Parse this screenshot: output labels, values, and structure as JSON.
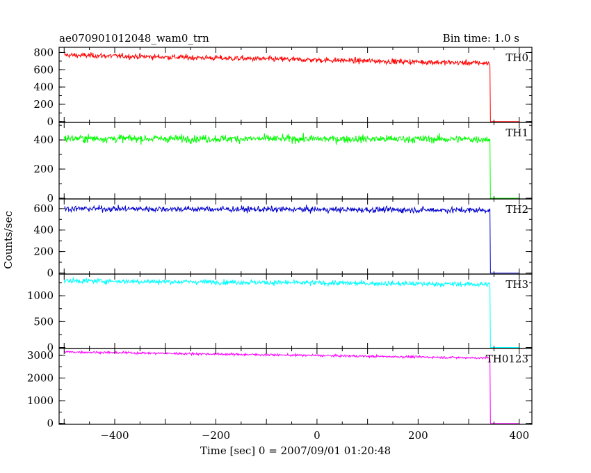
{
  "chart_data": {
    "type": "line",
    "title": "ae070901012048_wam0_trn",
    "bin_time_label": "Bin time: 1.0 s",
    "xlabel": "Time [sec] 0 = 2007/09/01 01:20:48",
    "ylabel": "Counts/sec",
    "xlim": [
      -510,
      425
    ],
    "x_ticks": [
      -400,
      -200,
      0,
      200,
      400
    ],
    "x_tick_labels": [
      "−400",
      "−200",
      "0",
      "200",
      "400"
    ],
    "x_start": -500,
    "x_end": 400,
    "drop_time": 342,
    "panels": [
      {
        "name": "TH0",
        "color": "#ff0000",
        "ylim": [
          -10,
          860
        ],
        "y_ticks": [
          0,
          200,
          400,
          600,
          800
        ],
        "level_start": 770,
        "level_end": 675,
        "noise": 28,
        "after_drop": 0
      },
      {
        "name": "TH1",
        "color": "#00ff00",
        "ylim": [
          -5,
          520
        ],
        "y_ticks": [
          0,
          200,
          400
        ],
        "level_start": 410,
        "level_end": 405,
        "noise": 24,
        "after_drop": 0
      },
      {
        "name": "TH2",
        "color": "#0000cc",
        "ylim": [
          -10,
          690
        ],
        "y_ticks": [
          0,
          200,
          400,
          600
        ],
        "level_start": 600,
        "level_end": 585,
        "noise": 25,
        "after_drop": 0
      },
      {
        "name": "TH3",
        "color": "#00ffff",
        "ylim": [
          -20,
          1420
        ],
        "y_ticks": [
          0,
          500,
          1000
        ],
        "level_start": 1290,
        "level_end": 1220,
        "noise": 45,
        "after_drop": 0
      },
      {
        "name": "TH0123",
        "color": "#ff00ff",
        "ylim": [
          -40,
          3300
        ],
        "y_ticks": [
          0,
          1000,
          2000,
          3000
        ],
        "level_start": 3150,
        "level_end": 2880,
        "noise": 45,
        "after_drop": 0
      }
    ]
  }
}
